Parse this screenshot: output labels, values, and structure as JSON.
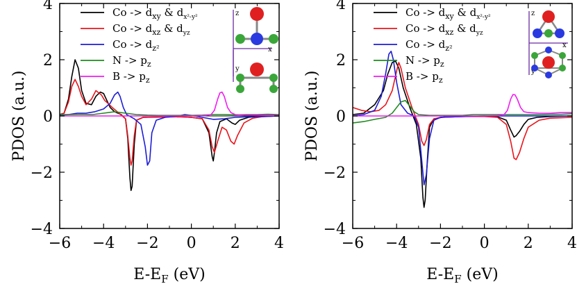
{
  "chart_data": [
    {
      "type": "line",
      "xlabel_main": "E-E",
      "xlabel_sub": "F",
      "xlabel_unit": " (eV)",
      "ylabel": "PDOS (a.u.)",
      "xlim": [
        -6,
        4
      ],
      "ylim": [
        -4,
        4
      ],
      "xticks": [
        "−6",
        "−4",
        "−2",
        "0",
        "2",
        "4"
      ],
      "yticks": [
        "4",
        "2",
        "0",
        "−2",
        "−4"
      ],
      "legend": [
        {
          "main": "Co -> d",
          "sub": "xy",
          "mid": " & d",
          "sub2": "x²-y²",
          "color": "#000000"
        },
        {
          "main": "Co -> d",
          "sub": "xz",
          "mid": " & d",
          "sub2": "yz",
          "color": "#e8141b"
        },
        {
          "main": "Co -> d",
          "sub": "z²",
          "mid": "",
          "sub2": "",
          "color": "#1c1cd6"
        },
        {
          "main": "N -> p",
          "sub": "z",
          "mid": "",
          "sub2": "",
          "color": "#1e8a1e"
        },
        {
          "main": "B -> p",
          "sub": "z",
          "mid": "",
          "sub2": "",
          "color": "#f01cf0"
        }
      ],
      "inset_labels": {
        "z": "z",
        "x": "x",
        "y": "y"
      },
      "series": [
        {
          "color": "#000000",
          "x": [
            -6,
            -5.8,
            -5.6,
            -5.45,
            -5.3,
            -5.15,
            -5.0,
            -4.8,
            -4.55,
            -4.35,
            -4.15,
            -4.0,
            -3.85,
            -3.7,
            -3.5,
            -3.2,
            -3.0,
            -2.9,
            -2.8,
            -2.75,
            -2.7,
            -2.6,
            -2.5,
            -2.2,
            -1.5,
            -0.5,
            0,
            0.5,
            0.8,
            0.95,
            1.0,
            1.05,
            1.15,
            1.3,
            1.6,
            1.85,
            2.0,
            2.2,
            2.6,
            3.0,
            4.0
          ],
          "y": [
            0.05,
            0.1,
            0.6,
            1.4,
            2.0,
            1.7,
            0.9,
            0.45,
            0.4,
            0.7,
            0.85,
            0.8,
            0.55,
            0.3,
            0.15,
            0.05,
            -0.1,
            -0.8,
            -2.2,
            -2.65,
            -2.5,
            -1.0,
            -0.15,
            -0.05,
            -0.04,
            -0.03,
            -0.05,
            -0.1,
            -0.6,
            -1.45,
            -1.6,
            -1.3,
            -0.6,
            -0.2,
            -0.1,
            -0.25,
            -0.3,
            -0.15,
            -0.05,
            -0.02,
            0.0
          ]
        },
        {
          "color": "#e8141b",
          "x": [
            -6,
            -5.8,
            -5.6,
            -5.45,
            -5.3,
            -5.15,
            -5.0,
            -4.8,
            -4.55,
            -4.35,
            -4.1,
            -3.95,
            -3.8,
            -3.6,
            -3.3,
            -3.0,
            -2.9,
            -2.8,
            -2.75,
            -2.7,
            -2.6,
            -2.5,
            -2.2,
            -1.5,
            -0.5,
            0,
            0.5,
            0.8,
            0.95,
            1.05,
            1.2,
            1.4,
            1.6,
            1.8,
            1.95,
            2.1,
            2.4,
            2.8,
            3.2,
            4.0
          ],
          "y": [
            0.03,
            0.1,
            0.5,
            1.05,
            1.3,
            1.05,
            0.7,
            0.4,
            0.6,
            0.9,
            0.75,
            0.55,
            0.45,
            0.3,
            0.1,
            -0.1,
            -0.7,
            -1.5,
            -1.75,
            -1.6,
            -0.7,
            -0.15,
            -0.05,
            -0.03,
            -0.03,
            -0.05,
            -0.1,
            -0.5,
            -1.1,
            -1.3,
            -0.9,
            -0.4,
            -0.5,
            -0.9,
            -1.0,
            -0.7,
            -0.25,
            -0.08,
            -0.03,
            0.0
          ]
        },
        {
          "color": "#1c1cd6",
          "x": [
            -6,
            -5.6,
            -5.2,
            -4.8,
            -4.4,
            -4.0,
            -3.7,
            -3.5,
            -3.35,
            -3.25,
            -3.1,
            -2.95,
            -2.6,
            -2.3,
            -2.1,
            -2.0,
            -1.9,
            -1.8,
            -1.6,
            -1.2,
            -0.6,
            -0.3,
            0,
            0.5,
            1.0,
            1.5,
            2.0,
            3.0,
            4.0
          ],
          "y": [
            0.02,
            0.05,
            0.1,
            0.1,
            0.15,
            0.25,
            0.45,
            0.75,
            0.85,
            0.7,
            0.3,
            0.05,
            -0.1,
            -0.3,
            -1.1,
            -1.75,
            -1.6,
            -0.6,
            -0.15,
            -0.05,
            0.0,
            0.05,
            0.02,
            -0.05,
            -0.12,
            -0.1,
            -0.05,
            -0.02,
            0.0
          ]
        },
        {
          "color": "#1e8a1e",
          "x": [
            -6,
            -5.5,
            -5.0,
            -4.5,
            -4.0,
            -3.5,
            -3.0,
            -2.5,
            -2.0,
            -1.5,
            -1.0,
            -0.5,
            0,
            0.5,
            1.0,
            1.5,
            2.0,
            2.5,
            3.0,
            3.5,
            4.0
          ],
          "y": [
            0.05,
            0.05,
            0.06,
            0.05,
            0.1,
            0.15,
            0.1,
            0.05,
            0.03,
            0.02,
            0.02,
            0.02,
            0.02,
            0.03,
            0.05,
            0.05,
            0.04,
            0.05,
            0.05,
            0.06,
            0.05
          ]
        },
        {
          "color": "#f01cf0",
          "x": [
            -6,
            -5.0,
            -4.0,
            -3.0,
            -2.0,
            -1.0,
            0,
            0.6,
            0.9,
            1.05,
            1.2,
            1.3,
            1.4,
            1.5,
            1.65,
            1.8,
            2.0,
            2.5,
            3.0,
            3.5,
            4.0
          ],
          "y": [
            0.0,
            0.0,
            0.0,
            0.0,
            0.0,
            0.0,
            0.0,
            0.01,
            0.05,
            0.2,
            0.6,
            0.82,
            0.85,
            0.7,
            0.3,
            0.12,
            0.05,
            0.03,
            0.03,
            0.02,
            0.02
          ]
        }
      ]
    },
    {
      "type": "line",
      "xlabel_main": "E-E",
      "xlabel_sub": "F",
      "xlabel_unit": " (eV)",
      "ylabel": "PDOS (a.u.)",
      "xlim": [
        -6,
        4
      ],
      "ylim": [
        -4,
        4
      ],
      "xticks": [
        "−6",
        "−4",
        "−2",
        "0",
        "2",
        "4"
      ],
      "yticks": [
        "4",
        "2",
        "0",
        "−2",
        "−4"
      ],
      "legend": [
        {
          "main": "Co -> d",
          "sub": "xy",
          "mid": " & d",
          "sub2": "x²-y²",
          "color": "#000000"
        },
        {
          "main": "Co -> d",
          "sub": "xz",
          "mid": " & d",
          "sub2": "yz",
          "color": "#e8141b"
        },
        {
          "main": "Co -> d",
          "sub": "z²",
          "mid": "",
          "sub2": "",
          "color": "#1c1cd6"
        },
        {
          "main": "N -> p",
          "sub": "z",
          "mid": "",
          "sub2": "",
          "color": "#1e8a1e"
        },
        {
          "main": "B -> p",
          "sub": "z",
          "mid": "",
          "sub2": "",
          "color": "#f01cf0"
        }
      ],
      "inset_labels": {
        "z": "z",
        "x": "x",
        "y": "y"
      },
      "series": [
        {
          "color": "#000000",
          "x": [
            -6,
            -5.5,
            -5.0,
            -4.6,
            -4.4,
            -4.2,
            -4.05,
            -3.9,
            -3.7,
            -3.4,
            -3.1,
            -2.9,
            -2.8,
            -2.75,
            -2.7,
            -2.6,
            -2.5,
            -2.3,
            -1.8,
            -1.0,
            0,
            0.6,
            1.0,
            1.2,
            1.35,
            1.45,
            1.6,
            1.8,
            2.0,
            2.4,
            3.0,
            4.0
          ],
          "y": [
            0.05,
            0.1,
            0.4,
            0.9,
            1.5,
            1.9,
            1.95,
            1.7,
            1.0,
            0.3,
            -0.3,
            -1.5,
            -2.9,
            -3.25,
            -3.0,
            -1.6,
            -0.4,
            -0.1,
            -0.03,
            -0.02,
            0.0,
            -0.03,
            -0.15,
            -0.5,
            -0.75,
            -0.7,
            -0.55,
            -0.3,
            -0.12,
            -0.05,
            -0.02,
            0.0
          ]
        },
        {
          "color": "#e8141b",
          "x": [
            -6,
            -5.6,
            -5.2,
            -4.8,
            -4.5,
            -4.2,
            -4.0,
            -3.9,
            -3.8,
            -3.6,
            -3.3,
            -3.0,
            -2.85,
            -2.75,
            -2.65,
            -2.5,
            -2.3,
            -2.0,
            -1.0,
            0,
            0.6,
            1.0,
            1.2,
            1.35,
            1.45,
            1.6,
            1.8,
            2.0,
            2.5,
            3.0,
            4.0
          ],
          "y": [
            0.3,
            0.2,
            0.15,
            0.2,
            0.4,
            0.9,
            1.6,
            1.9,
            1.7,
            1.0,
            0.3,
            -0.3,
            -0.9,
            -1.05,
            -0.85,
            -0.3,
            -0.1,
            -0.05,
            -0.02,
            -0.02,
            -0.05,
            -0.3,
            -0.9,
            -1.5,
            -1.55,
            -1.3,
            -0.8,
            -0.4,
            -0.15,
            -0.08,
            -0.05
          ]
        },
        {
          "color": "#1c1cd6",
          "x": [
            -6,
            -5.5,
            -5.0,
            -4.7,
            -4.5,
            -4.35,
            -4.25,
            -4.15,
            -4.0,
            -3.8,
            -3.5,
            -3.2,
            -3.0,
            -2.85,
            -2.75,
            -2.65,
            -2.5,
            -2.3,
            -2.0,
            -1.0,
            0,
            1.0,
            2.0,
            3.0,
            4.0
          ],
          "y": [
            0.0,
            0.05,
            0.2,
            0.7,
            1.5,
            2.2,
            2.3,
            2.0,
            1.2,
            0.4,
            0.1,
            0.0,
            -0.4,
            -1.6,
            -2.45,
            -2.1,
            -0.8,
            -0.15,
            -0.05,
            -0.02,
            0.0,
            0.0,
            0.0,
            0.0,
            0.0
          ]
        },
        {
          "color": "#1e8a1e",
          "x": [
            -6,
            -5.5,
            -5.0,
            -4.5,
            -4.2,
            -4.0,
            -3.8,
            -3.6,
            -3.4,
            -3.2,
            -3.0,
            -2.5,
            -2.0,
            -1.5,
            -1.0,
            -0.5,
            0,
            0.5,
            1.0,
            1.5,
            2.0,
            2.5,
            3.0,
            3.5,
            4.0
          ],
          "y": [
            -0.25,
            -0.2,
            -0.12,
            -0.05,
            0.1,
            0.3,
            0.5,
            0.55,
            0.35,
            0.15,
            0.05,
            0.02,
            0.02,
            0.02,
            0.02,
            0.05,
            0.05,
            0.05,
            0.05,
            0.05,
            0.05,
            0.05,
            0.06,
            0.06,
            0.08
          ]
        },
        {
          "color": "#f01cf0",
          "x": [
            -6,
            -5.0,
            -4.0,
            -3.0,
            -2.0,
            -1.0,
            0,
            0.6,
            0.9,
            1.05,
            1.2,
            1.3,
            1.4,
            1.5,
            1.65,
            1.8,
            2.0,
            2.5,
            3.0,
            3.5,
            4.0
          ],
          "y": [
            0.0,
            0.0,
            0.0,
            0.0,
            0.0,
            0.0,
            0.0,
            0.01,
            0.05,
            0.2,
            0.6,
            0.76,
            0.75,
            0.6,
            0.3,
            0.15,
            0.12,
            0.1,
            0.1,
            0.12,
            0.12
          ]
        }
      ]
    }
  ]
}
